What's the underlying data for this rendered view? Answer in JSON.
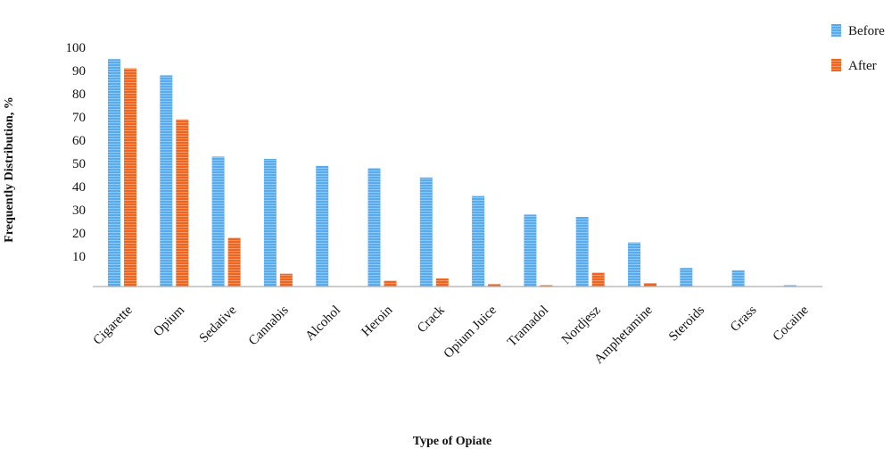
{
  "chart_data": {
    "type": "bar",
    "xlabel": "Type of Opiate",
    "ylabel": "Frequently Distribution, %",
    "ylim": [
      0,
      100
    ],
    "yticks": [
      10,
      20,
      30,
      40,
      50,
      60,
      70,
      80,
      90,
      100
    ],
    "grid": false,
    "legend_position": "top-right",
    "categories": [
      "Cigarette",
      "Opium",
      "Sedative",
      "Cannabis",
      "Alcohol",
      "Heroin",
      "Crack",
      "Opium Juice",
      "Tramadol",
      "Nordjesz",
      "Amphetamine",
      "Steroids",
      "Grass",
      "Cocaine"
    ],
    "series": [
      {
        "name": "Before",
        "color": "#5aaaf0",
        "values": [
          98,
          91,
          56,
          55,
          52,
          51,
          47,
          39,
          31,
          30,
          19,
          8,
          7,
          0.5
        ]
      },
      {
        "name": "After",
        "color": "#f0641e",
        "values": [
          94,
          72,
          21,
          5.5,
          0,
          2.5,
          3.5,
          1,
          0.3,
          6,
          1.5,
          0,
          0,
          0
        ]
      }
    ]
  }
}
